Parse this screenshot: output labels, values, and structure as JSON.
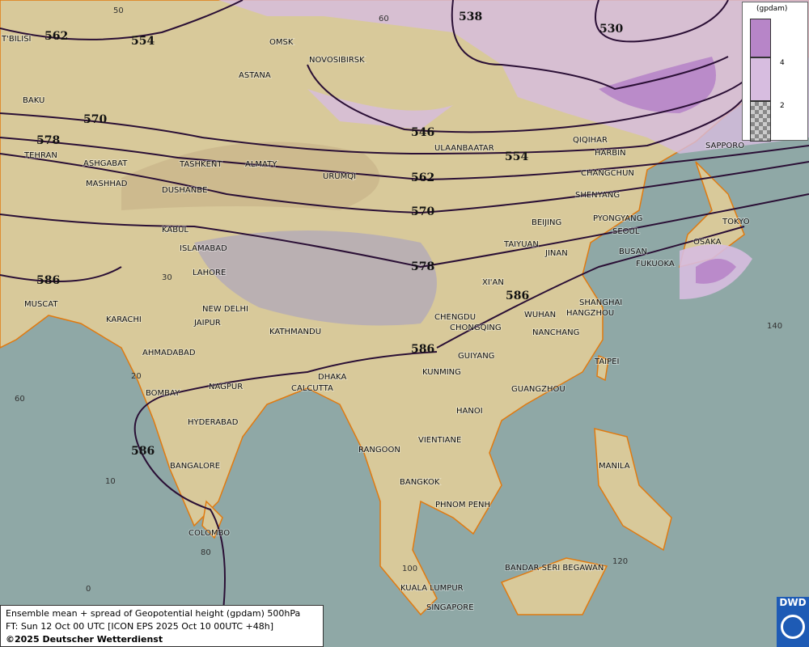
{
  "title": "Ensemble mean + spread of Geopotential height (gpdam) 500hPa",
  "forecast_time": "FT: Sun 12 Oct 00 UTC [ICON EPS 2025 Oct 10 00UTC +48h]",
  "copyright": "©2025 Deutscher Wetterdienst",
  "logo": "DWD",
  "colors": {
    "sea": "#8fa8a6",
    "land": "#d8c99a",
    "spread_high": "#b785c8",
    "spread_mid": "#d7bde0",
    "contour": "#2a0f35",
    "coast": "#e07a10"
  },
  "legend": {
    "unit": "(gpdam)",
    "ticks": [
      "4",
      "2"
    ],
    "bands": [
      {
        "label": ">4",
        "color": "#b785c8"
      },
      {
        "label": "2-4",
        "color": "#d7bde0"
      },
      {
        "label": "<2",
        "pattern": "checkerboard"
      }
    ]
  },
  "contours": [
    "562",
    "554",
    "538",
    "530",
    "570",
    "578",
    "546",
    "554",
    "562",
    "570",
    "578",
    "586",
    "586",
    "586",
    "586"
  ],
  "grid_labels": [
    "50",
    "60",
    "30",
    "20",
    "10",
    "0",
    "60",
    "80",
    "100",
    "120",
    "140"
  ],
  "cities": [
    "OMSK",
    "NOVOSIBIRSK",
    "ASTANA",
    "T'BILISI",
    "BAKU",
    "TEHRAN",
    "ASHGABAT",
    "MASHHAD",
    "TASHKENT",
    "ALMATY",
    "DUSHANBE",
    "URUMQI",
    "ULAANBAATAR",
    "QIQIHAR",
    "HARBIN",
    "CHANGCHUN",
    "SHENYANG",
    "BEIJING",
    "PYONGYANG",
    "SEOUL",
    "TOKYO",
    "OSAKA",
    "BUSAN",
    "FUKUOKA",
    "SAPPORO",
    "TAIYUAN",
    "JINAN",
    "XI'AN",
    "KABUL",
    "ISLAMABAD",
    "LAHORE",
    "NEW DELHI",
    "MUSCAT",
    "KARACHI",
    "JAIPUR",
    "KATHMANDU",
    "AHMADABAD",
    "BOMBAY",
    "NAGPUR",
    "HYDERABAD",
    "DHAKA",
    "CALCUTTA",
    "CHENGDU",
    "CHONGQING",
    "SHANGHAI",
    "HANGZHOU",
    "WUHAN",
    "NANCHANG",
    "GUIYANG",
    "KUNMING",
    "TAIPEI",
    "GUANGZHOU",
    "HANOI",
    "RANGOON",
    "VIENTIANE",
    "BANGALORE",
    "BANGKOK",
    "PHNOM PENH",
    "MANILA",
    "COLOMBO",
    "BANDAR SERI BEGAWAN",
    "KUALA LUMPUR",
    "SINGAPORE"
  ]
}
